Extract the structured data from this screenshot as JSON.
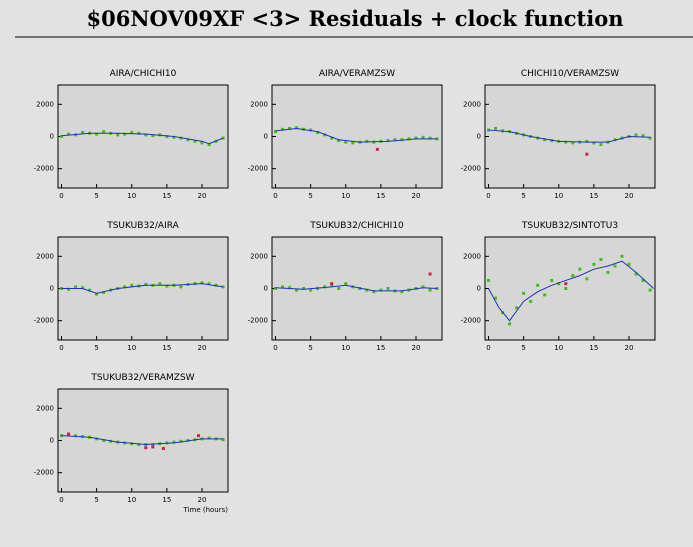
{
  "title": "$06NOV09XF <3> Residuals + clock function",
  "chart_data": [
    {
      "type": "scatter",
      "title": "AIRA/CHICHI10",
      "xlim": [
        -0.5,
        23.7
      ],
      "ylim": [
        -3200,
        3200
      ],
      "xticks": [
        0,
        5,
        10,
        15,
        20
      ],
      "yticks": [
        -2000,
        0,
        2000
      ],
      "series": [
        {
          "style": "points",
          "color": "#44bb22",
          "x": [
            0,
            1,
            2,
            3,
            4,
            5,
            6,
            7,
            8,
            9,
            10,
            11,
            12,
            13,
            14,
            15,
            16,
            17,
            18,
            19,
            20,
            21,
            22,
            23
          ],
          "values": [
            0,
            150,
            100,
            250,
            200,
            150,
            300,
            200,
            100,
            150,
            250,
            200,
            100,
            50,
            100,
            0,
            -50,
            -100,
            -200,
            -300,
            -400,
            -500,
            -300,
            -100
          ]
        },
        {
          "style": "line",
          "color": "#2233aa",
          "x": [
            0,
            4,
            8,
            12,
            16,
            20,
            21,
            23
          ],
          "values": [
            50,
            200,
            200,
            150,
            0,
            -300,
            -450,
            -100
          ]
        }
      ]
    },
    {
      "type": "scatter",
      "title": "AIRA/VERAMZSW",
      "xlim": [
        -0.5,
        23.7
      ],
      "ylim": [
        -3200,
        3200
      ],
      "xticks": [
        0,
        5,
        10,
        15,
        20
      ],
      "yticks": [
        -2000,
        0,
        2000
      ],
      "series": [
        {
          "style": "points",
          "color": "#44bb22",
          "x": [
            0,
            1,
            2,
            3,
            4,
            5,
            6,
            7,
            8,
            9,
            10,
            11,
            12,
            13,
            14,
            15,
            16,
            17,
            18,
            19,
            20,
            21,
            22,
            23
          ],
          "values": [
            300,
            450,
            500,
            550,
            450,
            400,
            250,
            100,
            -100,
            -250,
            -350,
            -400,
            -350,
            -300,
            -350,
            -300,
            -250,
            -200,
            -200,
            -150,
            -100,
            -50,
            -100,
            -150
          ]
        },
        {
          "style": "line",
          "color": "#2233aa",
          "x": [
            0,
            3,
            6,
            9,
            12,
            16,
            20,
            23
          ],
          "values": [
            350,
            500,
            300,
            -200,
            -350,
            -300,
            -150,
            -150
          ]
        },
        {
          "style": "points",
          "color": "#cc2244",
          "x": [
            14.5
          ],
          "values": [
            -800
          ]
        }
      ]
    },
    {
      "type": "scatter",
      "title": "CHICHI10/VERAMZSW",
      "xlim": [
        -0.5,
        23.7
      ],
      "ylim": [
        -3200,
        3200
      ],
      "xticks": [
        0,
        5,
        10,
        15,
        20
      ],
      "yticks": [
        -2000,
        0,
        2000
      ],
      "series": [
        {
          "style": "points",
          "color": "#44bb22",
          "x": [
            0,
            1,
            2,
            3,
            4,
            5,
            6,
            7,
            8,
            9,
            10,
            11,
            12,
            13,
            14,
            15,
            16,
            17,
            18,
            19,
            20,
            21,
            22,
            23
          ],
          "values": [
            400,
            500,
            350,
            300,
            200,
            100,
            0,
            -100,
            -200,
            -250,
            -300,
            -350,
            -400,
            -350,
            -300,
            -400,
            -500,
            -350,
            -200,
            -100,
            0,
            100,
            50,
            -100
          ]
        },
        {
          "style": "line",
          "color": "#2233aa",
          "x": [
            0,
            3,
            6,
            10,
            14,
            17,
            20,
            23
          ],
          "values": [
            400,
            300,
            0,
            -300,
            -350,
            -350,
            0,
            -50
          ]
        },
        {
          "style": "points",
          "color": "#cc2244",
          "x": [
            14
          ],
          "values": [
            -1100
          ]
        }
      ]
    },
    {
      "type": "scatter",
      "title": "TSUKUB32/AIRA",
      "xlim": [
        -0.5,
        23.7
      ],
      "ylim": [
        -3200,
        3200
      ],
      "xticks": [
        0,
        5,
        10,
        15,
        20
      ],
      "yticks": [
        -2000,
        0,
        2000
      ],
      "series": [
        {
          "style": "points",
          "color": "#44bb22",
          "x": [
            0,
            1,
            2,
            3,
            4,
            5,
            6,
            7,
            8,
            9,
            10,
            11,
            12,
            13,
            14,
            15,
            16,
            17,
            18,
            19,
            20,
            21,
            22,
            23
          ],
          "values": [
            0,
            -50,
            100,
            50,
            -100,
            -350,
            -250,
            -100,
            0,
            100,
            200,
            150,
            250,
            200,
            300,
            150,
            200,
            100,
            250,
            300,
            350,
            300,
            200,
            100
          ]
        },
        {
          "style": "line",
          "color": "#2233aa",
          "x": [
            0,
            3,
            5,
            8,
            12,
            16,
            20,
            23
          ],
          "values": [
            0,
            0,
            -300,
            0,
            200,
            200,
            300,
            100
          ]
        }
      ]
    },
    {
      "type": "scatter",
      "title": "TSUKUB32/CHICHI10",
      "xlim": [
        -0.5,
        23.7
      ],
      "ylim": [
        -3200,
        3200
      ],
      "xticks": [
        0,
        5,
        10,
        15,
        20
      ],
      "yticks": [
        -2000,
        0,
        2000
      ],
      "series": [
        {
          "style": "points",
          "color": "#44bb22",
          "x": [
            0,
            1,
            2,
            3,
            4,
            5,
            6,
            7,
            8,
            9,
            10,
            11,
            12,
            13,
            14,
            15,
            16,
            17,
            18,
            19,
            20,
            21,
            22,
            23
          ],
          "values": [
            0,
            100,
            50,
            -100,
            0,
            -100,
            0,
            100,
            200,
            0,
            300,
            100,
            0,
            -100,
            -200,
            -100,
            0,
            -150,
            -200,
            -100,
            0,
            100,
            -100,
            0
          ]
        },
        {
          "style": "line",
          "color": "#2233aa",
          "x": [
            0,
            4,
            8,
            10,
            14,
            18,
            21,
            23
          ],
          "values": [
            50,
            -50,
            100,
            200,
            -150,
            -150,
            50,
            0
          ]
        },
        {
          "style": "points",
          "color": "#cc2244",
          "x": [
            8,
            22
          ],
          "values": [
            300,
            900
          ]
        }
      ]
    },
    {
      "type": "scatter",
      "title": "TSUKUB32/SINTOTU3",
      "xlim": [
        -0.5,
        23.7
      ],
      "ylim": [
        -3200,
        3200
      ],
      "xticks": [
        0,
        5,
        10,
        15,
        20
      ],
      "yticks": [
        -2000,
        0,
        2000
      ],
      "series": [
        {
          "style": "points",
          "color": "#44bb22",
          "x": [
            0,
            1,
            2,
            3,
            4,
            5,
            6,
            7,
            8,
            9,
            10,
            11,
            12,
            13,
            14,
            15,
            16,
            17,
            18,
            19,
            20,
            21,
            22,
            23
          ],
          "values": [
            500,
            -600,
            -1500,
            -2200,
            -1200,
            -300,
            -800,
            200,
            -400,
            500,
            300,
            0,
            800,
            1200,
            600,
            1500,
            1800,
            1000,
            1400,
            2000,
            1500,
            900,
            500,
            -100
          ]
        },
        {
          "style": "line",
          "color": "#2233aa",
          "x": [
            0,
            1.5,
            3,
            5,
            7,
            9,
            11,
            13,
            15,
            17,
            19,
            21,
            23.5
          ],
          "values": [
            0,
            -1200,
            -2000,
            -800,
            -200,
            200,
            500,
            800,
            1200,
            1400,
            1700,
            1000,
            0
          ]
        },
        {
          "style": "points",
          "color": "#cc2244",
          "x": [
            11
          ],
          "values": [
            300
          ]
        }
      ]
    },
    {
      "type": "scatter",
      "title": "TSUKUB32/VERAMZSW",
      "xlabel": "Time (hours)",
      "xlim": [
        -0.5,
        23.7
      ],
      "ylim": [
        -3200,
        3200
      ],
      "xticks": [
        0,
        5,
        10,
        15,
        20
      ],
      "yticks": [
        -2000,
        0,
        2000
      ],
      "series": [
        {
          "style": "points",
          "color": "#44bb22",
          "x": [
            0,
            1,
            2,
            3,
            4,
            5,
            6,
            7,
            8,
            9,
            10,
            11,
            12,
            13,
            14,
            15,
            16,
            17,
            18,
            19,
            20,
            21,
            22,
            23
          ],
          "values": [
            300,
            350,
            300,
            250,
            200,
            100,
            0,
            -50,
            -100,
            -150,
            -200,
            -250,
            -250,
            -250,
            -200,
            -150,
            -100,
            -50,
            0,
            50,
            100,
            150,
            100,
            50
          ]
        },
        {
          "style": "line",
          "color": "#2233aa",
          "x": [
            0,
            4,
            8,
            12,
            16,
            20,
            23
          ],
          "values": [
            300,
            200,
            -100,
            -250,
            -150,
            100,
            100
          ]
        },
        {
          "style": "points",
          "color": "#cc2244",
          "x": [
            1,
            12,
            13,
            14.5,
            19.5
          ],
          "values": [
            400,
            -450,
            -400,
            -500,
            300
          ]
        }
      ]
    }
  ]
}
